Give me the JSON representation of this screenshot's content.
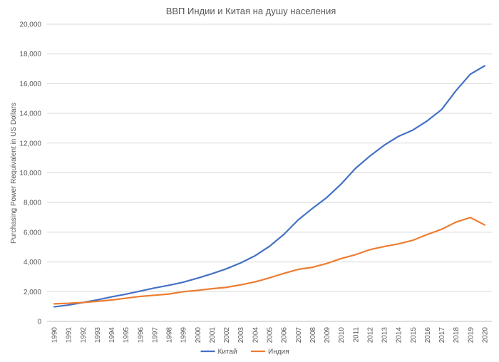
{
  "chart_data": {
    "type": "line",
    "title": "ВВП Индии и Китая на душу населения",
    "xlabel": "",
    "ylabel": "Purchasing Power Requivalent in US Dollars",
    "ylim": [
      0,
      20000
    ],
    "yticks": [
      "0",
      "2,000",
      "4,000",
      "6,000",
      "8,000",
      "10,000",
      "12,000",
      "14,000",
      "16,000",
      "18,000",
      "20,000"
    ],
    "grid": true,
    "legend": "bottom",
    "categories": [
      "1990",
      "1991",
      "1992",
      "1993",
      "1994",
      "1995",
      "1996",
      "1997",
      "1998",
      "1999",
      "2000",
      "2001",
      "2002",
      "2003",
      "2004",
      "2005",
      "2006",
      "2007",
      "2008",
      "2009",
      "2010",
      "2011",
      "2012",
      "2013",
      "2014",
      "2015",
      "2016",
      "2017",
      "2018",
      "2019",
      "2020"
    ],
    "series": [
      {
        "name": "Китай",
        "color": "#4472c4",
        "values": [
          980,
          1100,
          1270,
          1450,
          1650,
          1830,
          2040,
          2250,
          2430,
          2640,
          2910,
          3210,
          3540,
          3940,
          4420,
          5050,
          5850,
          6830,
          7610,
          8340,
          9250,
          10300,
          11130,
          11860,
          12460,
          12880,
          13500,
          14260,
          15530,
          16640,
          17200
        ]
      },
      {
        "name": "Индия",
        "color": "#ed7d31",
        "values": [
          1180,
          1220,
          1270,
          1350,
          1440,
          1560,
          1680,
          1760,
          1840,
          2000,
          2090,
          2200,
          2290,
          2460,
          2660,
          2930,
          3230,
          3500,
          3640,
          3900,
          4230,
          4490,
          4830,
          5040,
          5220,
          5460,
          5850,
          6200,
          6680,
          6990,
          6490
        ]
      }
    ]
  }
}
